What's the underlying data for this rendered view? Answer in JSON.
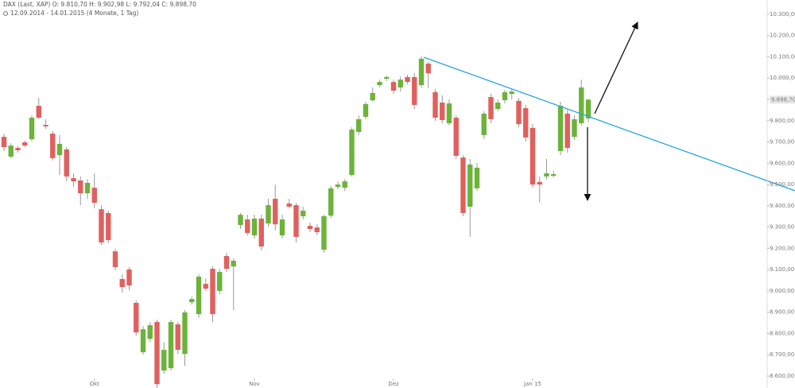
{
  "chart_data": {
    "type": "candlestick",
    "title": "DAX (Last, XAP)  O: 9.810,70  H: 9.902,98  L: 9.792,04  C: 9.898,70",
    "subtitle": "12.09.2014 - 14.01.2015 (4 Monate, 1 Tag)",
    "categories": [
      null,
      null,
      null,
      null,
      null,
      null,
      null,
      null,
      null,
      null,
      null,
      null,
      null,
      "Okt",
      null,
      null,
      null,
      null,
      null,
      null,
      null,
      null,
      null,
      null,
      null,
      null,
      null,
      null,
      null,
      null,
      null,
      null,
      null,
      null,
      null,
      null,
      "Nov",
      null,
      null,
      null,
      null,
      null,
      null,
      null,
      null,
      null,
      null,
      null,
      null,
      null,
      null,
      null,
      null,
      null,
      null,
      null,
      "Dez",
      null,
      null,
      null,
      null,
      null,
      null,
      null,
      null,
      null,
      null,
      null,
      null,
      null,
      null,
      null,
      null,
      null,
      null,
      null,
      "Jan 15",
      null,
      null,
      null,
      null,
      null,
      null,
      null,
      null
    ],
    "open": [
      9724,
      9631,
      9672,
      9698,
      9713,
      9870,
      9780,
      9739,
      9638,
      9665,
      9530,
      9519,
      9459,
      9485,
      9384,
      9366,
      9186,
      9056,
      9101,
      8944,
      8712,
      8775,
      8854,
      8626,
      8637,
      8843,
      8704,
      8947,
      8891,
      9033,
      9104,
      9000,
      9164,
      9115,
      9310,
      9336,
      9261,
      9340,
      9317,
      9433,
      9261,
      9411,
      9403,
      9351,
      9306,
      9298,
      9194,
      9354,
      9489,
      9485,
      9545,
      9747,
      9818,
      9896,
      9967,
      9997,
      9982,
      9956,
      10005,
      10005,
      9967,
      10068,
      9934,
      9885,
      9788,
      9814,
      9627,
      9396,
      9482,
      9732,
      9911,
      9855,
      9896,
      9926,
      9893,
      9859,
      9766,
      9512,
      9538,
      9541,
      9657,
      9833,
      9724,
      9788,
      9810.7
    ],
    "high": [
      9739,
      9694,
      9680,
      9706,
      9825,
      9907,
      9807,
      9751,
      9732,
      9676,
      9553,
      9538,
      9526,
      9553,
      9403,
      9377,
      9198,
      9078,
      9112,
      8955,
      8835,
      8854,
      8865,
      8760,
      8865,
      8854,
      8910,
      8974,
      9078,
      9059,
      9115,
      9104,
      9179,
      9153,
      9366,
      9358,
      9358,
      9358,
      9433,
      9500,
      9358,
      9433,
      9414,
      9396,
      9321,
      9313,
      9358,
      9493,
      9515,
      9526,
      9769,
      9825,
      9889,
      9956,
      9993,
      10012,
      9993,
      10008,
      10016,
      10023,
      10102,
      10076,
      9949,
      9919,
      9900,
      9825,
      9638,
      9620,
      9601,
      9844,
      9926,
      9900,
      9945,
      9949,
      9907,
      9874,
      9784,
      9538,
      9620,
      9564,
      9889,
      9851,
      9825,
      9993,
      9902.98
    ],
    "low": [
      9657,
      9624,
      9650,
      9676,
      9702,
      9807,
      9762,
      9612,
      9545,
      9515,
      9489,
      9403,
      9433,
      9388,
      9216,
      9224,
      9097,
      8992,
      9003,
      8790,
      8701,
      8760,
      8544,
      8611,
      8626,
      8704,
      8648,
      8936,
      8873,
      9000,
      8854,
      8985,
      9089,
      8910,
      9291,
      9261,
      9246,
      9190,
      9302,
      9284,
      9246,
      9388,
      9228,
      9336,
      9276,
      9261,
      9179,
      9343,
      9478,
      9470,
      9538,
      9732,
      9807,
      9889,
      9956,
      9986,
      9926,
      9937,
      9971,
      9855,
      9956,
      9952,
      9799,
      9788,
      9777,
      9620,
      9351,
      9254,
      9470,
      9713,
      9788,
      9844,
      9881,
      9900,
      9769,
      9702,
      9485,
      9414,
      9523,
      9534,
      9638,
      9650,
      9710,
      9777,
      9792.04
    ],
    "close": [
      9676,
      9683,
      9661,
      9683,
      9814,
      9814,
      9773,
      9624,
      9691,
      9538,
      9515,
      9459,
      9508,
      9414,
      9228,
      9239,
      9112,
      9018,
      9026,
      8805,
      8820,
      8839,
      8562,
      8723,
      8854,
      8723,
      8899,
      8962,
      9067,
      9011,
      8891,
      9089,
      9104,
      9142,
      9358,
      9272,
      9340,
      9209,
      9403,
      9313,
      9336,
      9396,
      9254,
      9377,
      9291,
      9276,
      9351,
      9482,
      9500,
      9515,
      9758,
      9807,
      9878,
      9930,
      9982,
      10005,
      9941,
      9993,
      9982,
      9874,
      10091,
      10023,
      9814,
      9803,
      9881,
      9635,
      9366,
      9594,
      9579,
      9833,
      9807,
      9885,
      9934,
      9937,
      9784,
      9721,
      9500,
      9500,
      9553,
      9549,
      9870,
      9672,
      9807,
      9956,
      9898.7
    ],
    "last_label": "9.898,70",
    "up_color": "#6cb33a",
    "down_color": "#e0605e",
    "ylim": [
      8544,
      10367
    ],
    "yticks": [
      {
        "value": 8600,
        "label": "8.600,00"
      },
      {
        "value": 8700,
        "label": "8.700,00"
      },
      {
        "value": 8800,
        "label": "8.800,00"
      },
      {
        "value": 8900,
        "label": "8.900,00"
      },
      {
        "value": 9000,
        "label": "9.000,00"
      },
      {
        "value": 9100,
        "label": "9.100,00"
      },
      {
        "value": 9200,
        "label": "9.200,00"
      },
      {
        "value": 9300,
        "label": "9.300,00"
      },
      {
        "value": 9400,
        "label": "9.400,00"
      },
      {
        "value": 9500,
        "label": "9.500,00"
      },
      {
        "value": 9600,
        "label": "9.600,00"
      },
      {
        "value": 9700,
        "label": "9.700,00"
      },
      {
        "value": 9800,
        "label": "9.800,00"
      },
      {
        "value": 9900,
        "label": "9.900,00"
      },
      {
        "value": 10000,
        "label": "10.000,00"
      },
      {
        "value": 10100,
        "label": "10.100,00"
      },
      {
        "value": 10200,
        "label": "10.200,00"
      },
      {
        "value": 10300,
        "label": "10.300,00"
      }
    ],
    "grid": false
  }
}
